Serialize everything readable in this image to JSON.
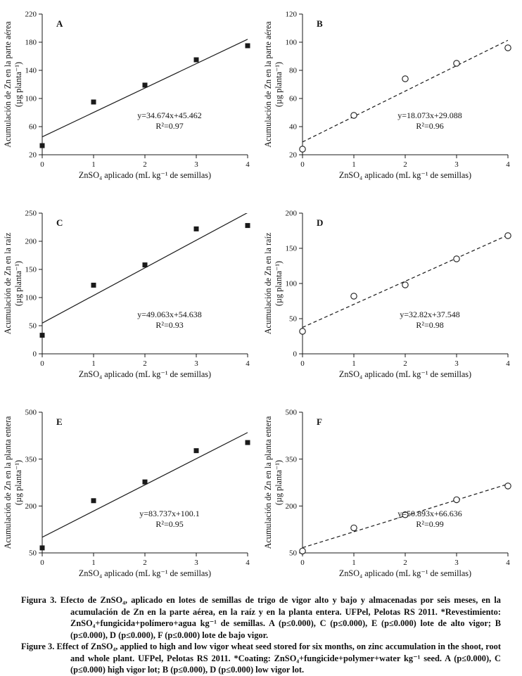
{
  "colors": {
    "ink": "#1a1a1a",
    "background": "#ffffff"
  },
  "chart_data": [
    {
      "id": "A",
      "type": "scatter",
      "panel_label": "A",
      "marker": "filled-square",
      "line_style": "solid",
      "xlabel": "ZnSO₄ aplicado (mL kg⁻¹ de semillas)",
      "ylabel": "Acumulación de Zn en la parte aérea",
      "ylabel_units": "(µg planta⁻¹)",
      "xlim": [
        0,
        4
      ],
      "ylim": [
        20,
        220
      ],
      "xticks": [
        0,
        1,
        2,
        3,
        4
      ],
      "yticks": [
        20,
        60,
        100,
        140,
        180,
        220
      ],
      "x": [
        0,
        1,
        2,
        3,
        4
      ],
      "y": [
        33,
        95,
        119,
        155,
        175
      ],
      "fit": {
        "slope": 34.674,
        "intercept": 45.462
      },
      "equation": "y=34.674x+45.462",
      "r2": "R²=0.97"
    },
    {
      "id": "B",
      "type": "scatter",
      "panel_label": "B",
      "marker": "open-circle",
      "line_style": "dashed",
      "xlabel": "ZnSO₄ aplicado (mL kg⁻¹ de semillas)",
      "ylabel": "Acumulación de Zn en la parte aérea",
      "ylabel_units": "(µg planta⁻¹)",
      "xlim": [
        0,
        4
      ],
      "ylim": [
        20,
        120
      ],
      "xticks": [
        0,
        1,
        2,
        3,
        4
      ],
      "yticks": [
        20,
        40,
        60,
        80,
        100,
        120
      ],
      "x": [
        0,
        1,
        2,
        3,
        4
      ],
      "y": [
        24,
        48,
        74,
        85,
        96
      ],
      "fit": {
        "slope": 18.073,
        "intercept": 29.088
      },
      "equation": "y=18.073x+29.088",
      "r2": "R²=0.96"
    },
    {
      "id": "C",
      "type": "scatter",
      "panel_label": "C",
      "marker": "filled-square",
      "line_style": "solid",
      "xlabel": "ZnSO₄ aplicado (mL kg⁻¹ de semillas)",
      "ylabel": "Acumulación de Zn en la raíz",
      "ylabel_units": "(µg planta⁻¹)",
      "xlim": [
        0,
        4
      ],
      "ylim": [
        0,
        250
      ],
      "xticks": [
        0,
        1,
        2,
        3,
        4
      ],
      "yticks": [
        0,
        50,
        100,
        150,
        200,
        250
      ],
      "x": [
        0,
        1,
        2,
        3,
        4
      ],
      "y": [
        33,
        122,
        158,
        222,
        228
      ],
      "fit": {
        "slope": 49.063,
        "intercept": 54.638
      },
      "equation": "y=49.063x+54.638",
      "r2": "R²=0.93"
    },
    {
      "id": "D",
      "type": "scatter",
      "panel_label": "D",
      "marker": "open-circle",
      "line_style": "dashed",
      "xlabel": "ZnSO₄ aplicado (mL kg⁻¹ de semillas)",
      "ylabel": "Acumulación de Zn en la raíz",
      "ylabel_units": "(µg planta⁻¹)",
      "xlim": [
        0,
        4
      ],
      "ylim": [
        0,
        200
      ],
      "xticks": [
        0,
        1,
        2,
        3,
        4
      ],
      "yticks": [
        0,
        50,
        100,
        150,
        200
      ],
      "x": [
        0,
        1,
        2,
        3,
        4
      ],
      "y": [
        32,
        82,
        98,
        135,
        168
      ],
      "fit": {
        "slope": 32.82,
        "intercept": 37.548
      },
      "equation": "y=32.82x+37.548",
      "r2": "R²=0.98"
    },
    {
      "id": "E",
      "type": "scatter",
      "panel_label": "E",
      "marker": "filled-square",
      "line_style": "solid",
      "xlabel": "ZnSO₄ aplicado (mL kg⁻¹ de semillas)",
      "ylabel": "Acumulación de Zn en la planta entera",
      "ylabel_units": "(µg planta⁻¹)",
      "xlim": [
        0,
        4
      ],
      "ylim": [
        50,
        500
      ],
      "xticks": [
        0,
        1,
        2,
        3,
        4
      ],
      "yticks": [
        50,
        200,
        350,
        500
      ],
      "x": [
        0,
        1,
        2,
        3,
        4
      ],
      "y": [
        66,
        217,
        277,
        377,
        403
      ],
      "fit": {
        "slope": 83.737,
        "intercept": 100.1
      },
      "equation": "y=83.737x+100.1",
      "r2": "R²=0.95"
    },
    {
      "id": "F",
      "type": "scatter",
      "panel_label": "F",
      "marker": "open-circle",
      "line_style": "dashed",
      "xlabel": "ZnSO₄ aplicado (mL kg⁻¹ de semillas)",
      "ylabel": "Acumulación de Zn en la planta entera",
      "ylabel_units": "(µg planta⁻¹)",
      "xlim": [
        0,
        4
      ],
      "ylim": [
        50,
        500
      ],
      "xticks": [
        0,
        1,
        2,
        3,
        4
      ],
      "yticks": [
        50,
        200,
        350,
        500
      ],
      "x": [
        0,
        1,
        2,
        3,
        4
      ],
      "y": [
        56,
        130,
        172,
        220,
        264
      ],
      "fit": {
        "slope": 50.893,
        "intercept": 66.636
      },
      "equation": "y=50.893x+66.636",
      "r2": "R²=0.99"
    }
  ],
  "caption": {
    "es": {
      "label": "Figura 3.",
      "text": "Efecto de ZnSO₄, aplicado en lotes de semillas de trigo de vigor alto y bajo y almacenadas por seis meses, en la acumulación de Zn en la parte aérea, en la raíz y en la planta entera. UFPel, Pelotas RS 2011. *Revestimiento: ZnSO₄+fungicida+polímero+agua kg⁻¹ de semillas. A (p≤0.000), C (p≤0.000), E (p≤0.000) lote de alto vigor; B (p≤0.000), D (p≤0.000), F (p≤0.000) lote de bajo vigor."
    },
    "en": {
      "label": "Figure 3.",
      "text": "Effect of ZnSO₄, applied to high and low vigor wheat seed stored for six months, on zinc accumulation in the shoot, root and whole plant. UFPel, Pelotas RS 2011. *Coating: ZnSO₄+fungicide+polymer+water kg⁻¹ seed. A (p≤0.000), C (p≤0.000) high vigor lot; B (p≤0.000), D (p≤0.000) low vigor lot."
    }
  }
}
